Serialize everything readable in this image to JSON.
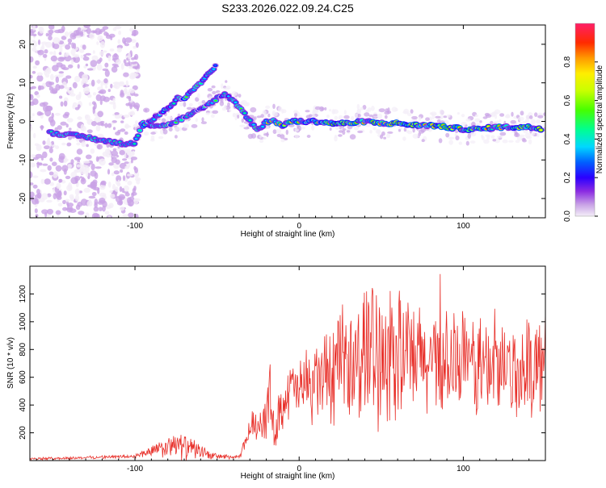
{
  "figure_title": "S233.2026.022.09.24.C25",
  "chart_data": [
    {
      "type": "heatmap",
      "title": "S233.2026.022.09.24.C25",
      "xlabel": "Height of straight line (km)",
      "ylabel": "Frequency (Hz)",
      "xlim": [
        -164,
        150
      ],
      "ylim": [
        -25,
        25
      ],
      "xticks": [
        -100,
        0,
        100
      ],
      "yticks": [
        -20,
        -10,
        0,
        10,
        20
      ],
      "ridge": {
        "x": [
          -164,
          -150,
          -140,
          -130,
          -120,
          -110,
          -104,
          -100,
          -95,
          -90,
          -85,
          -80,
          -75,
          -70,
          -65,
          -60,
          -55,
          -50,
          -45,
          -40,
          -35,
          -30,
          -25,
          -22,
          -20,
          -15,
          -10,
          -5,
          0,
          10,
          20,
          30,
          40,
          50,
          60,
          70,
          80,
          90,
          100,
          110,
          120,
          130,
          140,
          150
        ],
        "freq": [
          -3,
          -3,
          -3.5,
          -4,
          -5,
          -5.5,
          -6,
          -5.5,
          0,
          -1,
          -1,
          -1,
          0,
          1,
          2,
          3,
          4.5,
          6,
          7,
          5.5,
          3,
          0,
          -2,
          -1,
          0,
          0,
          -1,
          0,
          0,
          0,
          -0.5,
          -0.5,
          0,
          -0.5,
          -0.5,
          -1,
          -1,
          -1.5,
          -2,
          -2,
          -1.5,
          -1.5,
          -1.5,
          -2
        ]
      },
      "secondary_ridge": {
        "x": [
          -95,
          -88,
          -82,
          -78,
          -74,
          -70,
          -66,
          -62,
          -58,
          -54,
          -50
        ],
        "freq": [
          -1,
          1,
          3,
          4,
          6,
          6,
          8,
          9,
          11,
          13,
          15
        ]
      },
      "colorbar": {
        "label": "Normalized spectral amplitude",
        "range": [
          0,
          1
        ],
        "ticks": [
          0.0,
          0.2,
          0.4,
          0.6,
          0.8
        ],
        "tick_labels": [
          "0.0",
          "0.2",
          "0.4",
          "0.6",
          "0.8"
        ],
        "colors": [
          "#f4eef8",
          "#c9a2e6",
          "#8a2be2",
          "#2b00ff",
          "#0060ff",
          "#00d8ff",
          "#00ff90",
          "#46ff00",
          "#c8ff00",
          "#ffee00",
          "#ff9a00",
          "#ff2a00",
          "#ff1f68"
        ]
      }
    },
    {
      "type": "line",
      "xlabel": "Height of straight line (km)",
      "ylabel": "SNR (10 * v/v)",
      "xlim": [
        -164,
        150
      ],
      "ylim": [
        0,
        1400
      ],
      "xticks": [
        -100,
        0,
        100
      ],
      "yticks": [
        200,
        400,
        600,
        800,
        1000,
        1200
      ],
      "color": "#e8302a",
      "envelope": {
        "x": [
          -164,
          -140,
          -120,
          -100,
          -90,
          -80,
          -75,
          -70,
          -65,
          -60,
          -55,
          -50,
          -40,
          -36,
          -30,
          -25,
          -20,
          -18,
          -16,
          -10,
          -5,
          0,
          5,
          10,
          20,
          30,
          40,
          50,
          60,
          70,
          80,
          90,
          100,
          110,
          120,
          130,
          140,
          150
        ],
        "mean": [
          12,
          18,
          25,
          30,
          70,
          90,
          110,
          95,
          85,
          70,
          40,
          30,
          25,
          25,
          230,
          280,
          310,
          500,
          200,
          420,
          520,
          500,
          560,
          580,
          620,
          700,
          760,
          800,
          760,
          720,
          700,
          700,
          690,
          680,
          670,
          640,
          660,
          720
        ],
        "spread": [
          8,
          10,
          10,
          15,
          40,
          70,
          110,
          90,
          70,
          50,
          30,
          20,
          15,
          15,
          100,
          130,
          160,
          250,
          150,
          180,
          200,
          200,
          260,
          300,
          350,
          420,
          480,
          500,
          480,
          400,
          380,
          360,
          360,
          360,
          360,
          340,
          330,
          330
        ]
      }
    }
  ]
}
